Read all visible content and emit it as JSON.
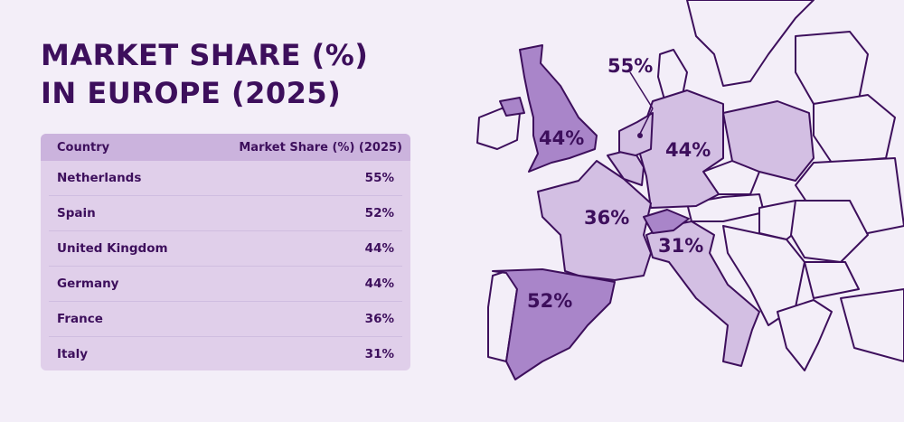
{
  "title_line1": "MARKET SHARE (%)",
  "title_line2": "IN EUROPE (2025)",
  "table": {
    "headers": [
      "Country",
      "Market Share (%) (2025)"
    ],
    "rows": [
      {
        "country": "Netherlands",
        "share": "55%"
      },
      {
        "country": "Spain",
        "share": "52%"
      },
      {
        "country": "United Kingdom",
        "share": "44%"
      },
      {
        "country": "Germany",
        "share": "44%"
      },
      {
        "country": "France",
        "share": "36%"
      },
      {
        "country": "Italy",
        "share": "31%"
      }
    ]
  },
  "map": {
    "labels": {
      "netherlands": "55%",
      "uk": "44%",
      "germany": "44%",
      "france": "36%",
      "italy": "31%",
      "spain": "52%"
    },
    "colors": {
      "background": "#f3eef8",
      "dark": "#3d0f5c",
      "high": "#a985c9",
      "mid": "#d3bfe3",
      "none": "#f3eef8"
    }
  },
  "chart_data": {
    "type": "table",
    "categories": [
      "Netherlands",
      "Spain",
      "United Kingdom",
      "Germany",
      "France",
      "Italy"
    ],
    "values": [
      55,
      52,
      44,
      44,
      36,
      31
    ],
    "unit": "%"
  }
}
